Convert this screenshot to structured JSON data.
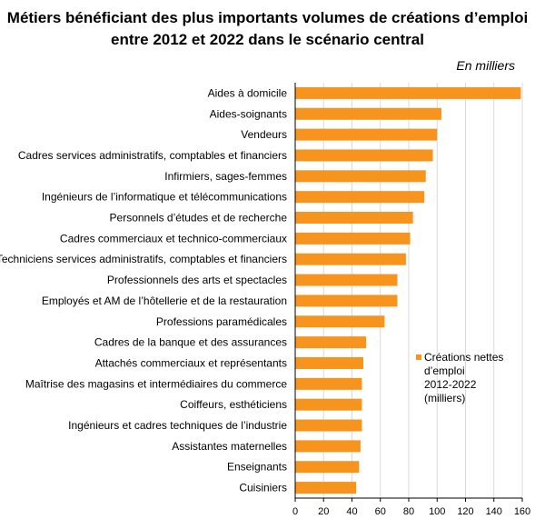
{
  "title_line1": "Métiers bénéficiant des plus importants volumes de créations d’emploi",
  "title_line2": "entre 2012 et 2022 dans le scénario central",
  "unit_label": "En milliers",
  "chart_data": {
    "type": "bar",
    "orientation": "horizontal",
    "title": "Métiers bénéficiant des plus importants volumes de créations d’emploi entre 2012 et 2022 dans le scénario central",
    "xlim": [
      0,
      160
    ],
    "x_ticks": [
      0,
      20,
      40,
      60,
      80,
      100,
      120,
      140,
      160
    ],
    "grid": "vertical",
    "legend_position": "right",
    "bar_color": "#f7941d",
    "categories": [
      "Aides à domicile",
      "Aides-soignants",
      "Vendeurs",
      "Cadres services administratifs, comptables et financiers",
      "Infirmiers, sages-femmes",
      "Ingénieurs de l’informatique et télécommunications",
      "Personnels d’études et de recherche",
      "Cadres commerciaux et technico-commerciaux",
      "Techniciens services administratifs, comptables et financiers",
      "Professionnels des arts et spectacles",
      "Employés et AM de l’hôtellerie et de la restauration",
      "Professions paramédicales",
      "Cadres de la banque et des assurances",
      "Attachés commerciaux et représentants",
      "Maîtrise des magasins et intermédiaires du commerce",
      "Coiffeurs, esthéticiens",
      "Ingénieurs et cadres techniques de l’industrie",
      "Assistantes maternelles",
      "Enseignants",
      "Cuisiniers"
    ],
    "series": [
      {
        "name_lines": [
          "Créations nettes",
          "d’emploi",
          "2012-2022",
          "(milliers)"
        ],
        "values": [
          159,
          103,
          100,
          97,
          92,
          91,
          83,
          81,
          78,
          72,
          72,
          63,
          50,
          48,
          47,
          47,
          47,
          46,
          45,
          43
        ]
      }
    ]
  }
}
